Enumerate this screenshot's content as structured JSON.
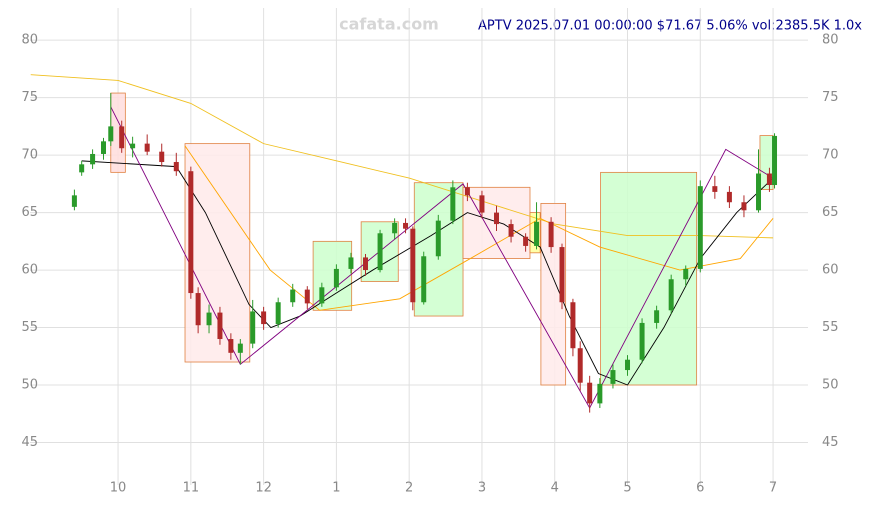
{
  "chart_data": {
    "type": "candlestick",
    "title": "APTV 2025.07.01 00:00:00 $71.67 5.06% vol:2385.5K 1.0x",
    "watermark": "cafata.com",
    "xlim": [
      -1.21,
      9.48
    ],
    "ylim": [
      41.3,
      82.8
    ],
    "xticks": [
      {
        "value": 0,
        "label": "10"
      },
      {
        "value": 1,
        "label": "11"
      },
      {
        "value": 2,
        "label": "12"
      },
      {
        "value": 3,
        "label": "1"
      },
      {
        "value": 4,
        "label": "2"
      },
      {
        "value": 5,
        "label": "3"
      },
      {
        "value": 6,
        "label": "4"
      },
      {
        "value": 7,
        "label": "5"
      },
      {
        "value": 8,
        "label": "6"
      },
      {
        "value": 9,
        "label": "7"
      }
    ],
    "yticks": [
      45,
      50,
      55,
      60,
      65,
      70,
      75,
      80
    ],
    "grid": true,
    "up_color": "#2a9a2a",
    "down_color": "#b02a2a",
    "candles": [
      [
        -0.6,
        65.5,
        67,
        65.2,
        66.5
      ],
      [
        -0.5,
        68.5,
        69.5,
        68.2,
        69.2
      ],
      [
        -0.35,
        69.2,
        70.5,
        68.8,
        70.1
      ],
      [
        -0.2,
        70.1,
        71.5,
        69.6,
        71.2
      ],
      [
        -0.1,
        71.2,
        75.4,
        70.8,
        72.5
      ],
      [
        0.05,
        72.5,
        73,
        70.2,
        70.6
      ],
      [
        0.2,
        70.6,
        71.6,
        69.8,
        71
      ],
      [
        0.4,
        71,
        71.8,
        70,
        70.3
      ],
      [
        0.6,
        70.3,
        71,
        69,
        69.4
      ],
      [
        0.8,
        69.4,
        70.2,
        68.2,
        68.6
      ],
      [
        1.0,
        68.6,
        69,
        57.5,
        58
      ],
      [
        1.1,
        58,
        58.5,
        54.5,
        55.2
      ],
      [
        1.25,
        55.2,
        57,
        54.5,
        56.3
      ],
      [
        1.4,
        56.3,
        56.8,
        53.5,
        54
      ],
      [
        1.55,
        54,
        54.5,
        52.2,
        52.8
      ],
      [
        1.68,
        52.8,
        54,
        51.8,
        53.6
      ],
      [
        1.85,
        53.6,
        57.4,
        53.2,
        56.4
      ],
      [
        2.0,
        56.4,
        56.8,
        54.8,
        55.3
      ],
      [
        2.2,
        55.3,
        57.6,
        55,
        57.2
      ],
      [
        2.4,
        57.2,
        58.8,
        56.8,
        58.3
      ],
      [
        2.6,
        58.3,
        58.6,
        56.6,
        57.1
      ],
      [
        2.8,
        57.1,
        58.9,
        56.8,
        58.5
      ],
      [
        3.0,
        58.5,
        60.5,
        58.2,
        60.1
      ],
      [
        3.2,
        60.1,
        61.5,
        59.7,
        61.1
      ],
      [
        3.4,
        61.1,
        61.4,
        59.5,
        60
      ],
      [
        3.6,
        60,
        63.5,
        59.8,
        63.2
      ],
      [
        3.8,
        63.2,
        64.5,
        62.7,
        64.1
      ],
      [
        3.95,
        64.1,
        64.5,
        63.2,
        63.6
      ],
      [
        4.05,
        63.6,
        63.8,
        56.5,
        57.2
      ],
      [
        4.2,
        57.2,
        61.6,
        57,
        61.2
      ],
      [
        4.4,
        61.2,
        64.8,
        60.9,
        64.3
      ],
      [
        4.6,
        64.3,
        67.8,
        64,
        67.2
      ],
      [
        4.8,
        67.2,
        67.6,
        66,
        66.5
      ],
      [
        5.0,
        66.5,
        66.9,
        64.5,
        65
      ],
      [
        5.2,
        65,
        65.6,
        63.4,
        64
      ],
      [
        5.4,
        64,
        64.4,
        62.4,
        62.9
      ],
      [
        5.6,
        62.9,
        63.2,
        61.6,
        62.1
      ],
      [
        5.75,
        62.1,
        65.9,
        61.8,
        64.2
      ],
      [
        5.95,
        64.2,
        64.6,
        61.5,
        62
      ],
      [
        6.1,
        62,
        62.3,
        56.6,
        57.2
      ],
      [
        6.25,
        57.2,
        57.5,
        52.5,
        53.2
      ],
      [
        6.35,
        53.2,
        53.8,
        49.5,
        50.2
      ],
      [
        6.48,
        50.2,
        50.8,
        47.6,
        48.4
      ],
      [
        6.62,
        48.4,
        50.6,
        48,
        50.1
      ],
      [
        6.8,
        50.1,
        51.8,
        49.7,
        51.3
      ],
      [
        7.0,
        51.3,
        52.6,
        50.8,
        52.2
      ],
      [
        7.2,
        52.2,
        55.8,
        51.9,
        55.4
      ],
      [
        7.4,
        55.4,
        56.9,
        54.9,
        56.5
      ],
      [
        7.6,
        56.5,
        59.6,
        56.2,
        59.2
      ],
      [
        7.8,
        59.2,
        60.4,
        58.6,
        60.1
      ],
      [
        8.0,
        60.1,
        67.8,
        59.8,
        67.3
      ],
      [
        8.2,
        67.3,
        68.2,
        66.2,
        66.8
      ],
      [
        8.4,
        66.8,
        67.3,
        65.4,
        65.9
      ],
      [
        8.6,
        65.9,
        66.5,
        64.6,
        65.2
      ],
      [
        8.8,
        65.2,
        70.5,
        65,
        68.4
      ],
      [
        8.95,
        68.4,
        68.9,
        66.8,
        67.4
      ],
      [
        9.02,
        67.4,
        71.9,
        67.1,
        71.67
      ]
    ],
    "boxes": [
      {
        "x": [
          -0.1,
          0.1
        ],
        "y": [
          68.5,
          75.4
        ],
        "color": "#ffdddd"
      },
      {
        "x": [
          0.92,
          1.81
        ],
        "y": [
          52,
          71
        ],
        "color": "#ffeaea"
      },
      {
        "x": [
          2.68,
          3.21
        ],
        "y": [
          56.5,
          62.5
        ],
        "color": "#ccffcc"
      },
      {
        "x": [
          3.34,
          3.85
        ],
        "y": [
          59,
          64.2
        ],
        "color": "#ccffcc"
      },
      {
        "x": [
          4.07,
          4.74
        ],
        "y": [
          56,
          67.6
        ],
        "color": "#ccffcc"
      },
      {
        "x": [
          4.74,
          5.66
        ],
        "y": [
          61,
          67.2
        ],
        "color": "#ffeaea"
      },
      {
        "x": [
          5.66,
          5.8
        ],
        "y": [
          61.5,
          65
        ],
        "color": "#ffff99"
      },
      {
        "x": [
          5.81,
          6.15
        ],
        "y": [
          50,
          65.8
        ],
        "color": "#ffeaea"
      },
      {
        "x": [
          6.63,
          7.95
        ],
        "y": [
          50,
          68.5
        ],
        "color": "#ccffcc"
      },
      {
        "x": [
          8.82,
          9.0
        ],
        "y": [
          67,
          71.7
        ],
        "color": "#ccffcc"
      }
    ],
    "lines": [
      {
        "color": "#f0c020",
        "x": [
          -1.2,
          0,
          1,
          2,
          3,
          4,
          5,
          6,
          7,
          8,
          9
        ],
        "values": [
          77,
          76.5,
          74.5,
          71,
          69.5,
          68,
          66,
          64,
          63,
          63,
          62.8
        ]
      },
      {
        "color": "#ffa500",
        "x": [
          0.92,
          2.09,
          2.77,
          3.87,
          4.84,
          5.8,
          6.62,
          7.72,
          8.55,
          9.0
        ],
        "values": [
          70.8,
          60,
          56.5,
          57.5,
          61,
          64.5,
          62,
          60,
          61,
          64.5
        ]
      },
      {
        "color": "#000000",
        "x": [
          -0.5,
          0.8,
          1.2,
          1.8,
          2.1,
          2.5,
          3,
          3.5,
          4.3,
          4.8,
          5.3,
          5.8,
          6.2,
          6.6,
          7.0,
          7.5,
          8,
          8.5,
          9
        ],
        "values": [
          69.5,
          69,
          65,
          57,
          55,
          56,
          58,
          60,
          63,
          65,
          64,
          62,
          56,
          51,
          50,
          55,
          61,
          65,
          68
        ]
      },
      {
        "color": "#800080",
        "x": [
          -0.1,
          1.68,
          4.74,
          6.48,
          8.35,
          9.0
        ],
        "values": [
          74.2,
          51.8,
          67.5,
          48,
          70.5,
          68
        ]
      }
    ]
  }
}
